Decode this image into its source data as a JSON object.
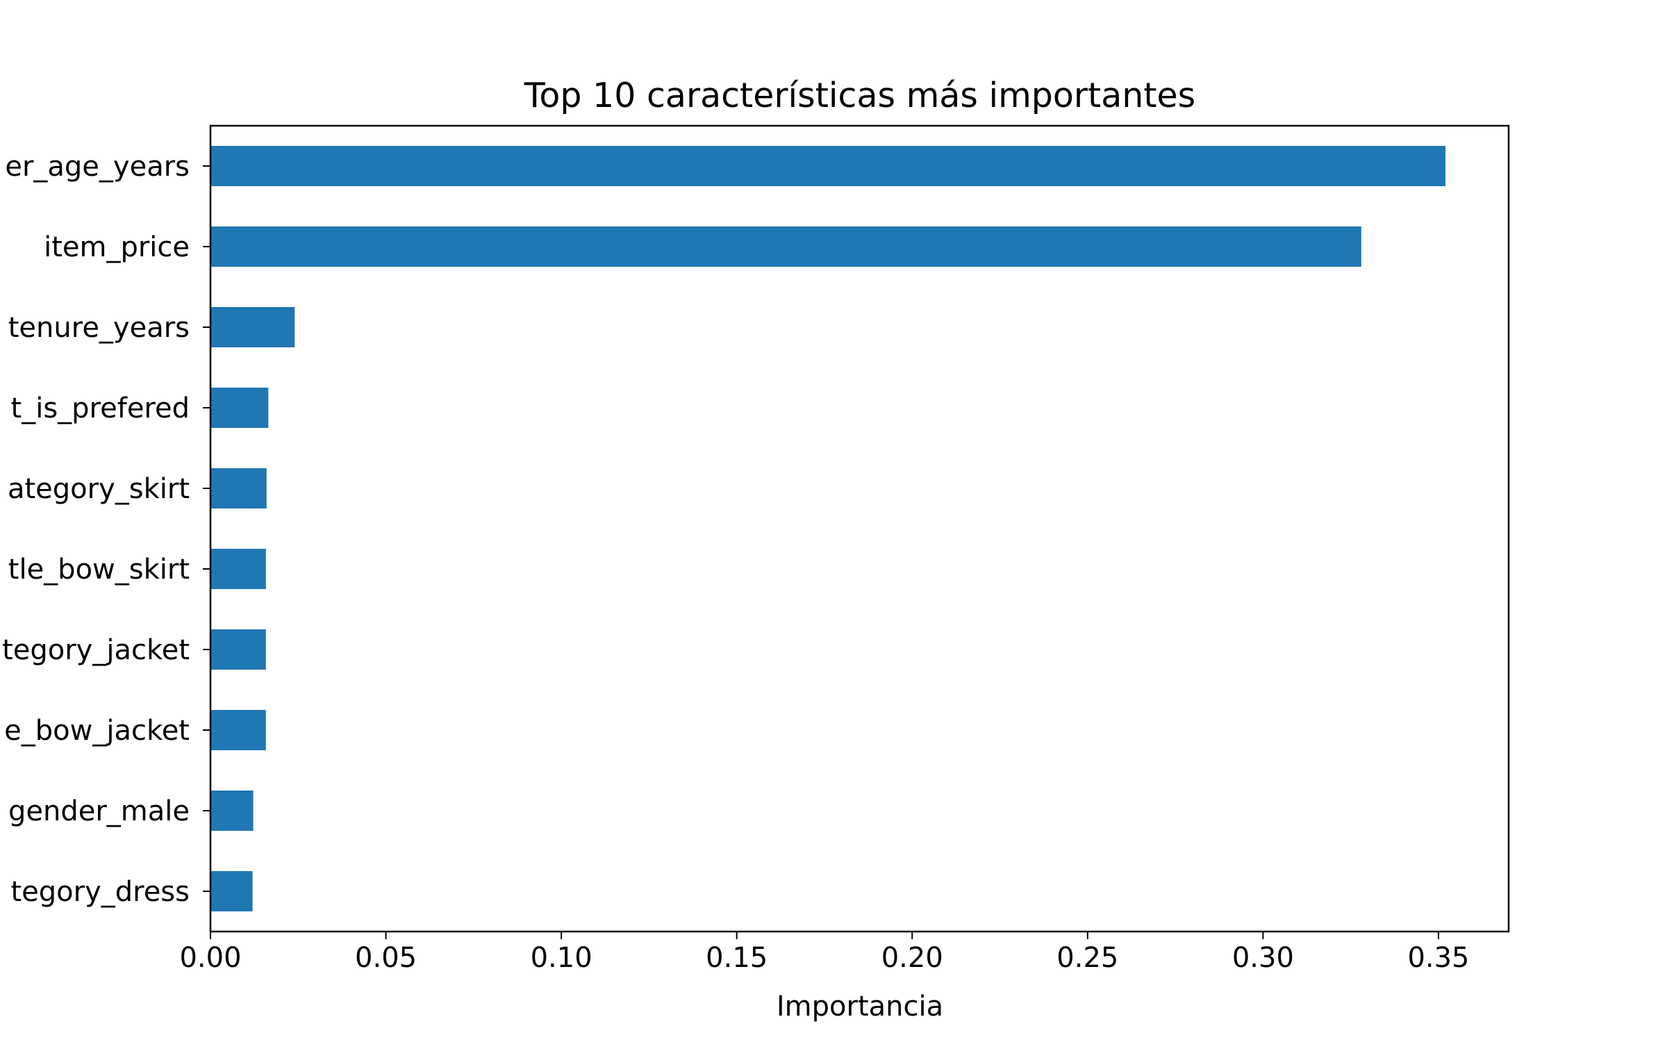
{
  "chart_data": {
    "type": "bar",
    "orientation": "horizontal",
    "title": "Top 10 características más importantes",
    "xlabel": "Importancia",
    "ylabel": "",
    "categories": [
      "er_age_years",
      "item_price",
      "tenure_years",
      "t_is_prefered",
      "ategory_skirt",
      "tle_bow_skirt",
      "tegory_jacket",
      "e_bow_jacket",
      "gender_male",
      "tegory_dress"
    ],
    "values": [
      0.352,
      0.328,
      0.024,
      0.0165,
      0.016,
      0.0158,
      0.0158,
      0.0158,
      0.0122,
      0.012
    ],
    "xlim": [
      0,
      0.37
    ],
    "xticks": [
      "0.00",
      "0.05",
      "0.10",
      "0.15",
      "0.20",
      "0.25",
      "0.30",
      "0.35"
    ],
    "xtick_values": [
      0,
      0.05,
      0.1,
      0.15,
      0.2,
      0.25,
      0.3,
      0.35
    ],
    "bar_color": "#1f77b4",
    "grid": false
  }
}
